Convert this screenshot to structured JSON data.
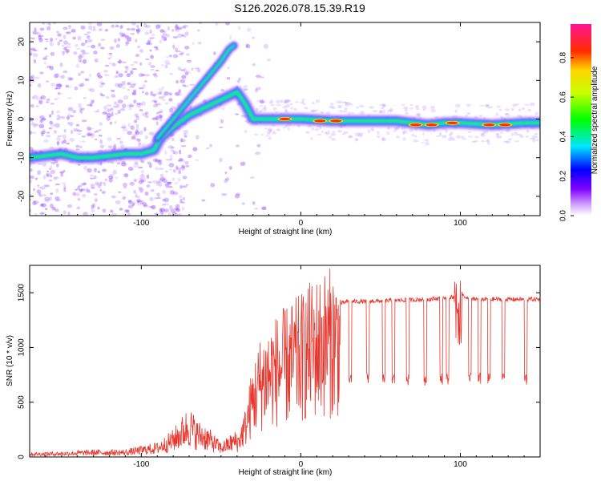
{
  "title": "S126.2026.078.15.39.R19",
  "chart_data": [
    {
      "type": "heatmap",
      "xlabel": "Height of straight line (km)",
      "ylabel": "Frequency (Hz)",
      "xlim": [
        -170,
        150
      ],
      "ylim": [
        -25,
        25
      ],
      "xticks": [
        -100,
        0,
        100
      ],
      "yticks": [
        -20,
        -10,
        0,
        10,
        20
      ],
      "colorbar": {
        "label": "Normalized spectral amplitude",
        "range": [
          0,
          0.97
        ],
        "ticks": [
          0.0,
          0.2,
          0.4,
          0.6,
          0.8
        ]
      },
      "ridge": {
        "x": [
          -170,
          -160,
          -150,
          -140,
          -130,
          -120,
          -110,
          -100,
          -92,
          -88,
          -80,
          -70,
          -60,
          -50,
          -45,
          -40,
          -35,
          -30,
          -20,
          -10,
          0,
          20,
          40,
          60,
          80,
          90,
          100,
          120,
          140,
          150
        ],
        "y": [
          -10,
          -9.5,
          -9,
          -10,
          -10,
          -9.5,
          -9,
          -9,
          -8,
          -5,
          -2,
          1,
          3,
          5,
          6,
          7,
          4,
          0,
          0,
          0,
          0,
          -0.5,
          -0.5,
          -0.5,
          -1.5,
          -1,
          -1,
          -1.5,
          -1,
          -1
        ]
      },
      "branch": {
        "x": [
          -90,
          -80,
          -70,
          -60,
          -50,
          -45,
          -42
        ],
        "y": [
          -5,
          0,
          5,
          10,
          15,
          18,
          19
        ]
      }
    },
    {
      "type": "line",
      "xlabel": "Height of straight line (km)",
      "ylabel": "SNR (10 * v/v)",
      "xlim": [
        -170,
        150
      ],
      "ylim": [
        0,
        1750
      ],
      "xticks": [
        -100,
        0,
        100
      ],
      "yticks": [
        0,
        500,
        1000,
        1500
      ],
      "color": "#e8372e",
      "envelope": {
        "x": [
          -170,
          -150,
          -130,
          -110,
          -90,
          -80,
          -70,
          -65,
          -60,
          -50,
          -40,
          -35,
          -30,
          -25,
          -20,
          -15,
          -10,
          -5,
          0,
          5,
          10,
          15,
          20,
          25,
          30,
          40,
          60,
          80,
          95,
          100,
          105,
          120,
          150
        ],
        "y": [
          25,
          30,
          40,
          40,
          80,
          150,
          280,
          200,
          180,
          80,
          150,
          350,
          700,
          900,
          1000,
          1050,
          1100,
          1150,
          1200,
          1280,
          1330,
          1380,
          1400,
          1400,
          1420,
          1420,
          1430,
          1440,
          1460,
          1500,
          1440,
          1440,
          1440
        ]
      },
      "dropouts_x": [
        31,
        42,
        52,
        58,
        67,
        78,
        88,
        92,
        106,
        112,
        118,
        127,
        141
      ]
    }
  ]
}
